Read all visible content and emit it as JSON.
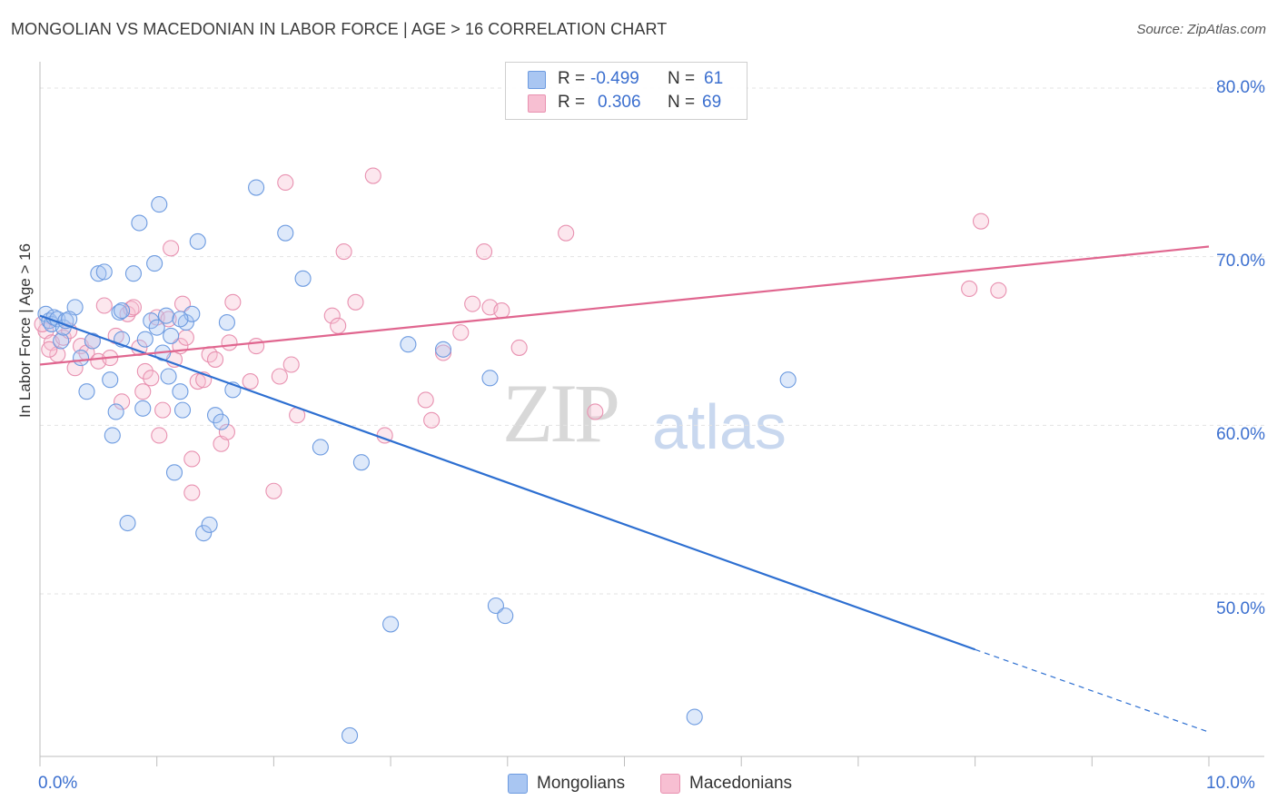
{
  "header": {
    "title": "MONGOLIAN VS MACEDONIAN IN LABOR FORCE | AGE > 16 CORRELATION CHART",
    "source": "Source: ZipAtlas.com"
  },
  "watermark": {
    "zip": "ZIP",
    "atlas": "atlas"
  },
  "legend": {
    "r_label": "R =",
    "n_label": "N =",
    "rows": [
      {
        "r": "-0.499",
        "n": "61",
        "color": "#a9c6f2",
        "border": "#6d9be0"
      },
      {
        "r": "0.306",
        "n": "69",
        "color": "#f7bfd2",
        "border": "#e891b0"
      }
    ]
  },
  "bottom_legend": {
    "mongolians": "Mongolians",
    "macedonians": "Macedonians"
  },
  "axes": {
    "ylabel": "In Labor Force | Age > 16",
    "x_min_label": "0.0%",
    "x_max_label": "10.0%",
    "y_ticks": [
      "80.0%",
      "70.0%",
      "60.0%",
      "50.0%"
    ]
  },
  "chart_data": {
    "type": "scatter",
    "title": "MONGOLIAN VS MACEDONIAN IN LABOR FORCE | AGE > 16 CORRELATION CHART",
    "xlabel": "",
    "ylabel": "In Labor Force | Age > 16",
    "xlim": [
      0,
      10
    ],
    "ylim": [
      41,
      82
    ],
    "y_gridlines": [
      50,
      60,
      70,
      80
    ],
    "legend_position": "top-center",
    "series": [
      {
        "name": "Mongolians",
        "color": "#6d9be0",
        "trend": {
          "x0": 0.0,
          "y0": 66.5,
          "x1": 8.0,
          "y1": 46.7,
          "dashed_to_x": 10.0,
          "dashed_to_y": 41.8,
          "color": "#2d6fd1"
        },
        "points": [
          [
            0.05,
            66.6
          ],
          [
            0.08,
            66.2
          ],
          [
            0.1,
            66.0
          ],
          [
            0.12,
            66.4
          ],
          [
            0.15,
            66.3
          ],
          [
            0.18,
            65.0
          ],
          [
            0.2,
            65.8
          ],
          [
            0.22,
            66.2
          ],
          [
            0.3,
            67.0
          ],
          [
            0.35,
            64.0
          ],
          [
            0.4,
            62.0
          ],
          [
            0.45,
            65.0
          ],
          [
            0.5,
            69.0
          ],
          [
            0.55,
            69.1
          ],
          [
            0.6,
            62.7
          ],
          [
            0.62,
            59.4
          ],
          [
            0.65,
            60.8
          ],
          [
            0.68,
            66.7
          ],
          [
            0.7,
            65.1
          ],
          [
            0.75,
            54.2
          ],
          [
            0.8,
            69.0
          ],
          [
            0.85,
            72.0
          ],
          [
            0.88,
            61.0
          ],
          [
            0.9,
            65.1
          ],
          [
            0.95,
            66.2
          ],
          [
            0.98,
            69.6
          ],
          [
            1.0,
            65.8
          ],
          [
            1.02,
            73.1
          ],
          [
            1.05,
            64.3
          ],
          [
            1.08,
            66.5
          ],
          [
            1.1,
            62.9
          ],
          [
            1.12,
            65.3
          ],
          [
            1.15,
            57.2
          ],
          [
            1.2,
            62.0
          ],
          [
            1.22,
            60.9
          ],
          [
            1.25,
            66.1
          ],
          [
            1.3,
            66.6
          ],
          [
            1.35,
            70.9
          ],
          [
            1.4,
            53.6
          ],
          [
            1.45,
            54.1
          ],
          [
            1.5,
            60.6
          ],
          [
            1.55,
            60.2
          ],
          [
            1.6,
            66.1
          ],
          [
            1.65,
            62.1
          ],
          [
            1.85,
            74.1
          ],
          [
            2.1,
            71.4
          ],
          [
            2.25,
            68.7
          ],
          [
            2.4,
            58.7
          ],
          [
            2.65,
            41.6
          ],
          [
            2.75,
            57.8
          ],
          [
            3.0,
            48.2
          ],
          [
            3.15,
            64.8
          ],
          [
            3.45,
            64.5
          ],
          [
            3.85,
            62.8
          ],
          [
            3.9,
            49.3
          ],
          [
            3.98,
            48.7
          ],
          [
            5.6,
            42.7
          ],
          [
            6.4,
            62.7
          ],
          [
            0.25,
            66.3
          ],
          [
            0.7,
            66.8
          ],
          [
            1.2,
            66.3
          ]
        ]
      },
      {
        "name": "Macedonians",
        "color": "#e891b0",
        "trend": {
          "x0": 0.0,
          "y0": 63.6,
          "x1": 10.0,
          "y1": 70.6,
          "color": "#e0668f"
        },
        "points": [
          [
            0.05,
            65.6
          ],
          [
            0.1,
            64.9
          ],
          [
            0.15,
            64.2
          ],
          [
            0.2,
            65.2
          ],
          [
            0.25,
            65.6
          ],
          [
            0.3,
            63.4
          ],
          [
            0.35,
            64.7
          ],
          [
            0.4,
            64.3
          ],
          [
            0.45,
            65.0
          ],
          [
            0.5,
            63.8
          ],
          [
            0.55,
            67.1
          ],
          [
            0.6,
            64.0
          ],
          [
            0.65,
            65.3
          ],
          [
            0.7,
            61.4
          ],
          [
            0.75,
            66.6
          ],
          [
            0.78,
            66.9
          ],
          [
            0.8,
            67.0
          ],
          [
            0.85,
            64.6
          ],
          [
            0.88,
            62.0
          ],
          [
            0.9,
            63.2
          ],
          [
            0.95,
            62.8
          ],
          [
            1.0,
            66.4
          ],
          [
            1.02,
            59.4
          ],
          [
            1.05,
            60.9
          ],
          [
            1.1,
            66.3
          ],
          [
            1.12,
            70.5
          ],
          [
            1.15,
            63.9
          ],
          [
            1.2,
            64.7
          ],
          [
            1.22,
            67.2
          ],
          [
            1.25,
            65.2
          ],
          [
            1.3,
            58.0
          ],
          [
            1.3,
            56.0
          ],
          [
            1.35,
            62.6
          ],
          [
            1.4,
            62.7
          ],
          [
            1.45,
            64.2
          ],
          [
            1.5,
            63.9
          ],
          [
            1.55,
            58.9
          ],
          [
            1.6,
            59.6
          ],
          [
            1.62,
            64.9
          ],
          [
            1.65,
            67.3
          ],
          [
            1.8,
            62.6
          ],
          [
            1.85,
            64.7
          ],
          [
            2.0,
            56.1
          ],
          [
            2.05,
            62.9
          ],
          [
            2.1,
            74.4
          ],
          [
            2.15,
            63.6
          ],
          [
            2.2,
            60.6
          ],
          [
            2.5,
            66.5
          ],
          [
            2.55,
            65.9
          ],
          [
            2.6,
            70.3
          ],
          [
            2.7,
            67.3
          ],
          [
            2.85,
            74.8
          ],
          [
            2.95,
            59.4
          ],
          [
            3.3,
            61.5
          ],
          [
            3.35,
            60.3
          ],
          [
            3.45,
            64.3
          ],
          [
            3.6,
            65.5
          ],
          [
            3.7,
            67.2
          ],
          [
            3.8,
            70.3
          ],
          [
            3.85,
            67.0
          ],
          [
            3.95,
            66.8
          ],
          [
            4.1,
            64.6
          ],
          [
            4.5,
            71.4
          ],
          [
            4.75,
            60.8
          ],
          [
            7.95,
            68.1
          ],
          [
            8.05,
            72.1
          ],
          [
            8.2,
            68.0
          ],
          [
            0.02,
            66.0
          ],
          [
            0.08,
            64.5
          ]
        ]
      }
    ]
  }
}
